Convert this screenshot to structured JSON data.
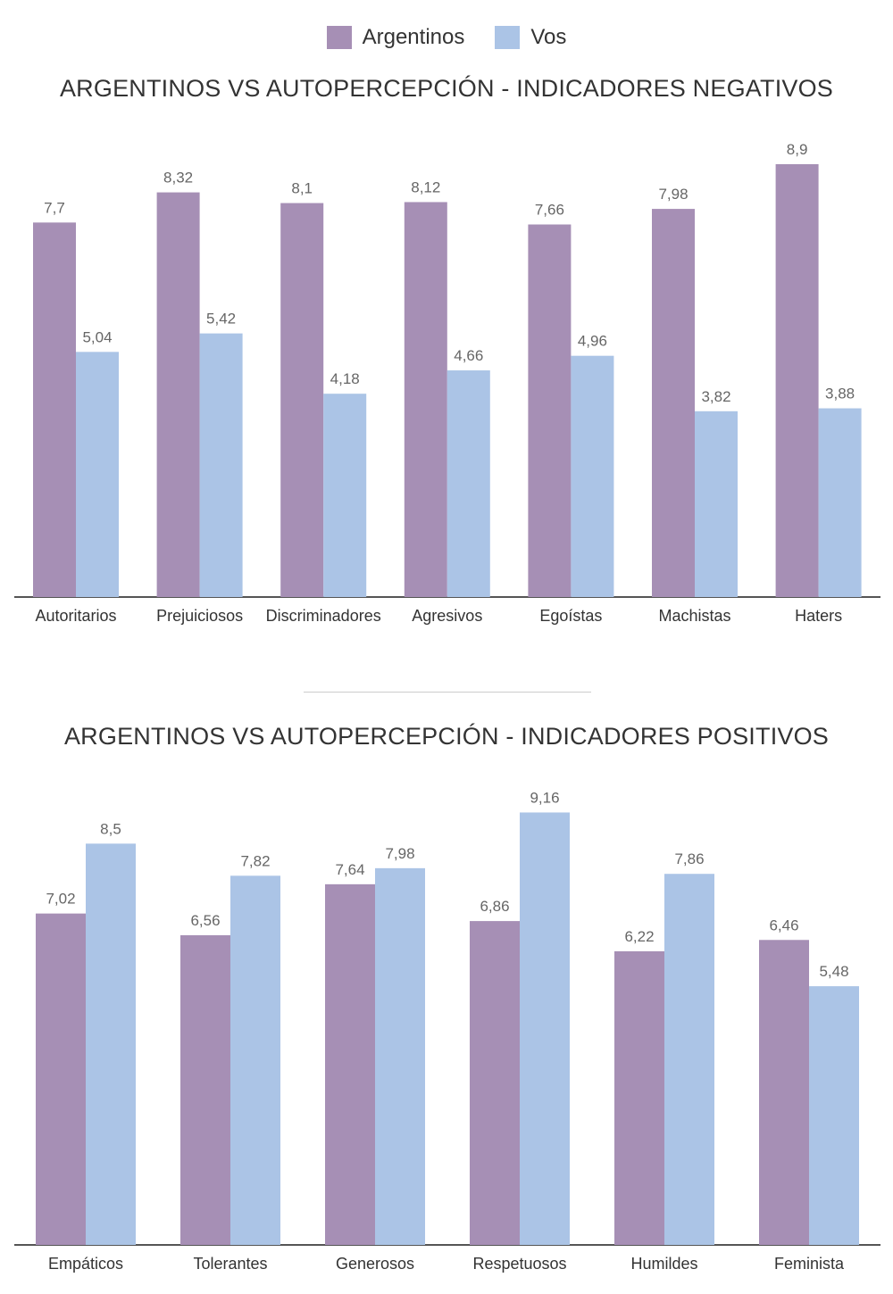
{
  "legend": {
    "items": [
      {
        "label": "Argentinos",
        "color": "#a68fb5"
      },
      {
        "label": "Vos",
        "color": "#abc4e6"
      }
    ]
  },
  "chart_data": [
    {
      "type": "bar",
      "title": "ARGENTINOS VS AUTOPERCEPCIÓN - INDICADORES NEGATIVOS",
      "categories": [
        "Autoritarios",
        "Prejuiciosos",
        "Discriminadores",
        "Agresivos",
        "Egoístas",
        "Machistas",
        "Haters"
      ],
      "series": [
        {
          "name": "Argentinos",
          "color": "#a68fb5",
          "values": [
            7.7,
            8.32,
            8.1,
            8.12,
            7.66,
            7.98,
            8.9
          ],
          "labels": [
            "7,7",
            "8,32",
            "8,1",
            "8,12",
            "7,66",
            "7,98",
            "8,9"
          ]
        },
        {
          "name": "Vos",
          "color": "#abc4e6",
          "values": [
            5.04,
            5.42,
            4.18,
            4.66,
            4.96,
            3.82,
            3.88
          ],
          "labels": [
            "5,04",
            "5,42",
            "4,18",
            "4,66",
            "4,96",
            "3,82",
            "3,88"
          ]
        }
      ],
      "ylim": [
        0,
        10
      ],
      "grid": false,
      "legend_position": "top"
    },
    {
      "type": "bar",
      "title": "ARGENTINOS VS AUTOPERCEPCIÓN - INDICADORES POSITIVOS",
      "categories": [
        "Empáticos",
        "Tolerantes",
        "Generosos",
        "Respetuosos",
        "Humildes",
        "Feminista"
      ],
      "series": [
        {
          "name": "Argentinos",
          "color": "#a68fb5",
          "values": [
            7.02,
            6.56,
            7.64,
            6.86,
            6.22,
            6.46
          ],
          "labels": [
            "7,02",
            "6,56",
            "7,64",
            "6,86",
            "6,22",
            "6,46"
          ]
        },
        {
          "name": "Vos",
          "color": "#abc4e6",
          "values": [
            8.5,
            7.82,
            7.98,
            9.16,
            7.86,
            5.48
          ],
          "labels": [
            "8,5",
            "7,82",
            "7,98",
            "9,16",
            "7,86",
            "5,48"
          ]
        }
      ],
      "ylim": [
        0,
        10
      ],
      "grid": false,
      "legend_position": "top"
    }
  ]
}
